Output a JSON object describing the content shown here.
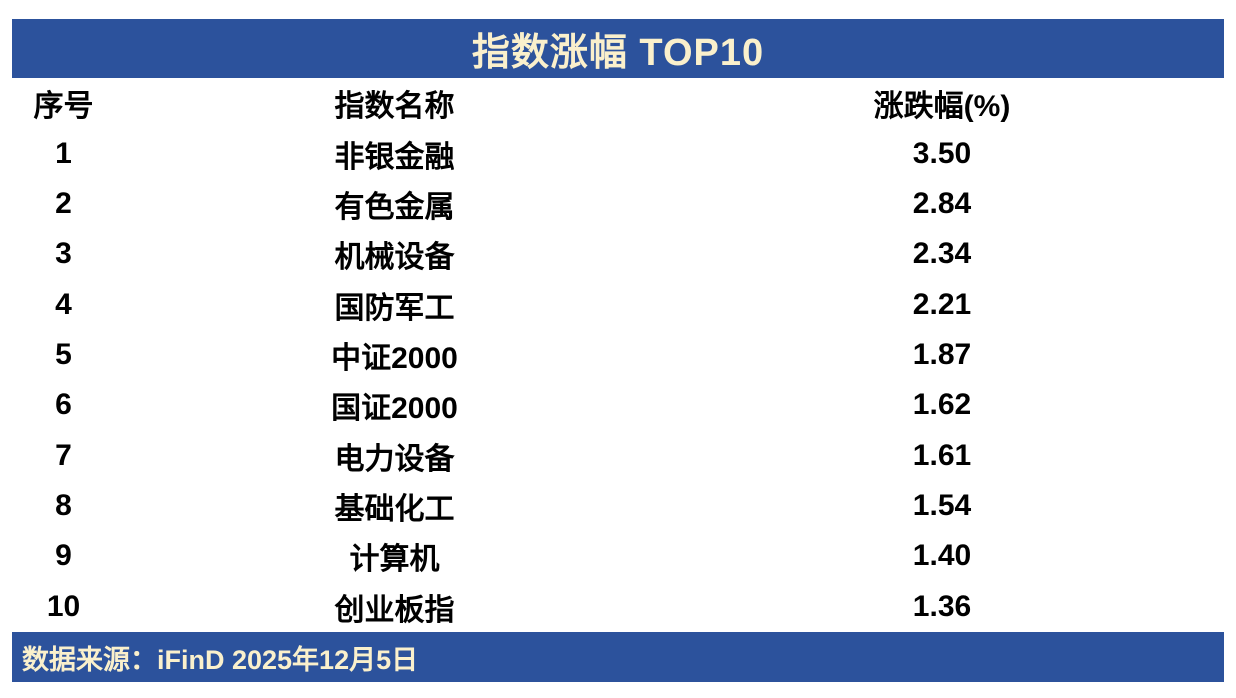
{
  "chart_data": {
    "type": "table",
    "title": "指数涨幅 TOP10",
    "columns": [
      "序号",
      "指数名称",
      "涨跌幅(%)"
    ],
    "rows": [
      {
        "rank": "1",
        "name": "非银金融",
        "change": "3.50"
      },
      {
        "rank": "2",
        "name": "有色金属",
        "change": "2.84"
      },
      {
        "rank": "3",
        "name": "机械设备",
        "change": "2.34"
      },
      {
        "rank": "4",
        "name": "国防军工",
        "change": "2.21"
      },
      {
        "rank": "5",
        "name": "中证2000",
        "change": "1.87"
      },
      {
        "rank": "6",
        "name": "国证2000",
        "change": "1.62"
      },
      {
        "rank": "7",
        "name": "电力设备",
        "change": "1.61"
      },
      {
        "rank": "8",
        "name": "基础化工",
        "change": "1.54"
      },
      {
        "rank": "9",
        "name": "计算机",
        "change": "1.40"
      },
      {
        "rank": "10",
        "name": "创业板指",
        "change": "1.36"
      }
    ],
    "source_note": "数据来源：iFinD 2025年12月5日",
    "layout": {
      "legend": "none",
      "grid": "off"
    }
  },
  "colors": {
    "bar_blue": "#2C529C",
    "cream_text": "#FAF0CC",
    "body_text": "#000000",
    "background": "#FFFFFF"
  }
}
